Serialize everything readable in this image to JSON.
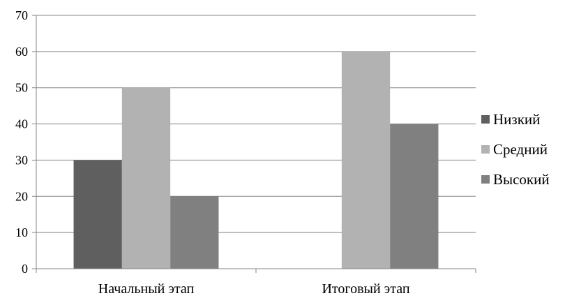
{
  "chart_data": {
    "type": "bar",
    "title": "",
    "xlabel": "",
    "ylabel": "",
    "categories": [
      "Начальный этап",
      "Итоговый этап"
    ],
    "series": [
      {
        "name": "Низкий",
        "values": [
          30,
          0
        ],
        "color": "#5f5f5f"
      },
      {
        "name": "Средний",
        "values": [
          50,
          60
        ],
        "color": "#b2b2b2"
      },
      {
        "name": "Высокий",
        "values": [
          20,
          40
        ],
        "color": "#808080"
      }
    ],
    "ylim": [
      0,
      70
    ],
    "yticks": [
      0,
      10,
      20,
      30,
      40,
      50,
      60,
      70
    ],
    "grid": true,
    "legend_position": "right"
  }
}
